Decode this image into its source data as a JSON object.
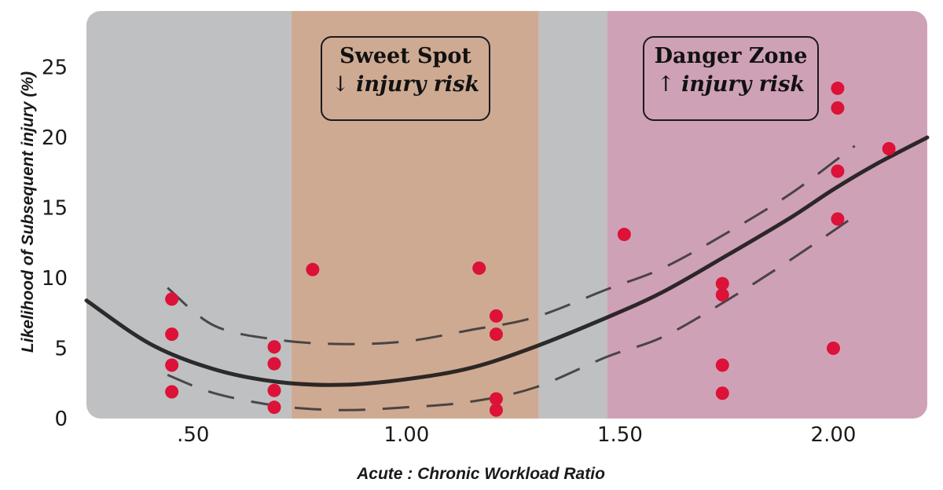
{
  "chart_data": {
    "type": "scatter",
    "title": "",
    "xlabel": "Acute : Chronic Workload Ratio",
    "ylabel": "Likelihood of Subsequent injury (%)",
    "xlim": [
      0.25,
      2.22
    ],
    "ylim": [
      0,
      29
    ],
    "x_ticks": [
      0.5,
      1.0,
      1.5,
      2.0
    ],
    "x_tick_labels": [
      ".50",
      "1.00",
      "1.50",
      "2.00"
    ],
    "y_ticks": [
      0,
      5,
      10,
      15,
      20,
      25
    ],
    "y_tick_labels": [
      "0",
      "5",
      "10",
      "15",
      "20",
      "25"
    ],
    "zones": [
      {
        "name": "low",
        "x0": 0.25,
        "x1": 0.73,
        "color": "#bfc0c2"
      },
      {
        "name": "sweet-spot",
        "x0": 0.73,
        "x1": 1.31,
        "color": "#cfaa93"
      },
      {
        "name": "mid",
        "x0": 1.31,
        "x1": 1.47,
        "color": "#bfc0c2"
      },
      {
        "name": "danger",
        "x0": 1.47,
        "x1": 2.22,
        "color": "#cfa1b6"
      }
    ],
    "annotations": {
      "sweet_spot": {
        "title": "Sweet Spot",
        "arrow": "↓",
        "sub": "injury risk"
      },
      "danger_zone": {
        "title": "Danger Zone",
        "arrow": "↑",
        "sub": "injury risk"
      }
    },
    "points": [
      {
        "x": 0.45,
        "y": 8.5
      },
      {
        "x": 0.45,
        "y": 6.0
      },
      {
        "x": 0.45,
        "y": 3.8
      },
      {
        "x": 0.45,
        "y": 1.9
      },
      {
        "x": 0.69,
        "y": 5.1
      },
      {
        "x": 0.69,
        "y": 3.9
      },
      {
        "x": 0.69,
        "y": 2.0
      },
      {
        "x": 0.69,
        "y": 0.8
      },
      {
        "x": 0.78,
        "y": 10.6
      },
      {
        "x": 1.17,
        "y": 10.7
      },
      {
        "x": 1.21,
        "y": 7.3
      },
      {
        "x": 1.21,
        "y": 6.0
      },
      {
        "x": 1.21,
        "y": 1.4
      },
      {
        "x": 1.21,
        "y": 0.6
      },
      {
        "x": 1.51,
        "y": 13.1
      },
      {
        "x": 1.74,
        "y": 9.6
      },
      {
        "x": 1.74,
        "y": 8.8
      },
      {
        "x": 1.74,
        "y": 3.8
      },
      {
        "x": 1.74,
        "y": 1.8
      },
      {
        "x": 2.0,
        "y": 5.0
      },
      {
        "x": 2.01,
        "y": 23.5
      },
      {
        "x": 2.01,
        "y": 22.1
      },
      {
        "x": 2.01,
        "y": 17.6
      },
      {
        "x": 2.01,
        "y": 14.2
      },
      {
        "x": 2.13,
        "y": 19.2
      }
    ],
    "fit_curve": [
      [
        0.25,
        8.4
      ],
      [
        0.4,
        5.3
      ],
      [
        0.55,
        3.5
      ],
      [
        0.7,
        2.6
      ],
      [
        0.85,
        2.4
      ],
      [
        1.0,
        2.8
      ],
      [
        1.15,
        3.6
      ],
      [
        1.3,
        5.1
      ],
      [
        1.47,
        7.2
      ],
      [
        1.6,
        9.0
      ],
      [
        1.75,
        11.6
      ],
      [
        1.9,
        14.3
      ],
      [
        2.0,
        16.3
      ],
      [
        2.1,
        18.1
      ],
      [
        2.22,
        20.0
      ]
    ],
    "upper_band": [
      [
        0.44,
        9.3
      ],
      [
        0.55,
        6.6
      ],
      [
        0.7,
        5.6
      ],
      [
        0.85,
        5.3
      ],
      [
        1.0,
        5.5
      ],
      [
        1.15,
        6.3
      ],
      [
        1.3,
        7.2
      ],
      [
        1.47,
        9.2
      ],
      [
        1.6,
        10.7
      ],
      [
        1.75,
        13.2
      ],
      [
        1.9,
        16.0
      ],
      [
        2.05,
        19.4
      ]
    ],
    "lower_band": [
      [
        0.44,
        3.1
      ],
      [
        0.55,
        1.8
      ],
      [
        0.7,
        0.9
      ],
      [
        0.85,
        0.6
      ],
      [
        1.0,
        0.8
      ],
      [
        1.15,
        1.2
      ],
      [
        1.3,
        2.2
      ],
      [
        1.47,
        4.4
      ],
      [
        1.6,
        5.8
      ],
      [
        1.75,
        8.4
      ],
      [
        1.9,
        11.3
      ],
      [
        2.05,
        14.4
      ]
    ],
    "colors": {
      "point": "#dc1238",
      "curve": "#111111",
      "band": "#333333"
    }
  }
}
